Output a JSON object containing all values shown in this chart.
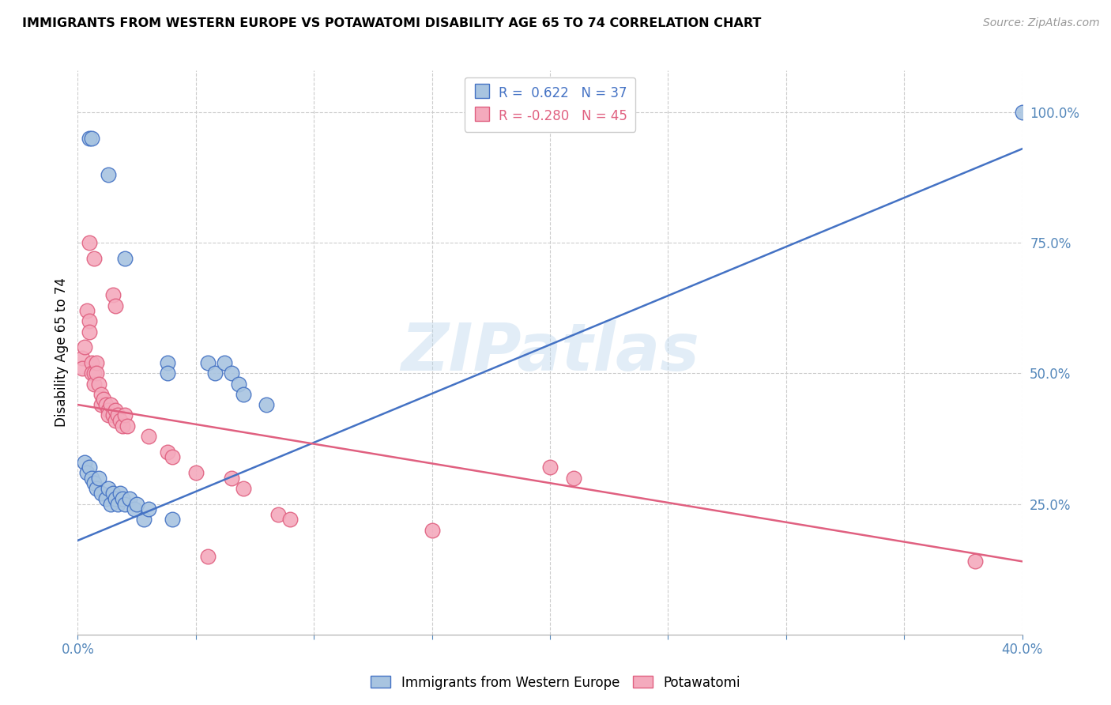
{
  "title": "IMMIGRANTS FROM WESTERN EUROPE VS POTAWATOMI DISABILITY AGE 65 TO 74 CORRELATION CHART",
  "source": "Source: ZipAtlas.com",
  "ylabel": "Disability Age 65 to 74",
  "right_yticks": [
    "100.0%",
    "75.0%",
    "50.0%",
    "25.0%"
  ],
  "right_ytick_vals": [
    1.0,
    0.75,
    0.5,
    0.25
  ],
  "blue_color": "#A8C4E0",
  "pink_color": "#F4AABD",
  "blue_line_color": "#4472C4",
  "pink_line_color": "#E06080",
  "blue_scatter": [
    [
      0.005,
      0.95
    ],
    [
      0.006,
      0.95
    ],
    [
      0.013,
      0.88
    ],
    [
      0.02,
      0.72
    ],
    [
      0.038,
      0.52
    ],
    [
      0.038,
      0.5
    ],
    [
      0.055,
      0.52
    ],
    [
      0.058,
      0.5
    ],
    [
      0.062,
      0.52
    ],
    [
      0.065,
      0.5
    ],
    [
      0.068,
      0.48
    ],
    [
      0.07,
      0.46
    ],
    [
      0.003,
      0.33
    ],
    [
      0.004,
      0.31
    ],
    [
      0.005,
      0.32
    ],
    [
      0.006,
      0.3
    ],
    [
      0.007,
      0.29
    ],
    [
      0.008,
      0.28
    ],
    [
      0.009,
      0.3
    ],
    [
      0.01,
      0.27
    ],
    [
      0.012,
      0.26
    ],
    [
      0.013,
      0.28
    ],
    [
      0.014,
      0.25
    ],
    [
      0.015,
      0.27
    ],
    [
      0.016,
      0.26
    ],
    [
      0.017,
      0.25
    ],
    [
      0.018,
      0.27
    ],
    [
      0.019,
      0.26
    ],
    [
      0.02,
      0.25
    ],
    [
      0.022,
      0.26
    ],
    [
      0.024,
      0.24
    ],
    [
      0.025,
      0.25
    ],
    [
      0.028,
      0.22
    ],
    [
      0.03,
      0.24
    ],
    [
      0.04,
      0.22
    ],
    [
      0.08,
      0.44
    ],
    [
      0.4,
      1.0
    ]
  ],
  "pink_scatter": [
    [
      0.002,
      0.53
    ],
    [
      0.002,
      0.51
    ],
    [
      0.003,
      0.55
    ],
    [
      0.004,
      0.62
    ],
    [
      0.005,
      0.6
    ],
    [
      0.005,
      0.58
    ],
    [
      0.006,
      0.52
    ],
    [
      0.006,
      0.5
    ],
    [
      0.007,
      0.5
    ],
    [
      0.007,
      0.48
    ],
    [
      0.008,
      0.52
    ],
    [
      0.008,
      0.5
    ],
    [
      0.009,
      0.48
    ],
    [
      0.01,
      0.46
    ],
    [
      0.01,
      0.44
    ],
    [
      0.011,
      0.45
    ],
    [
      0.012,
      0.44
    ],
    [
      0.013,
      0.43
    ],
    [
      0.013,
      0.42
    ],
    [
      0.014,
      0.44
    ],
    [
      0.015,
      0.42
    ],
    [
      0.016,
      0.43
    ],
    [
      0.016,
      0.41
    ],
    [
      0.017,
      0.42
    ],
    [
      0.018,
      0.41
    ],
    [
      0.019,
      0.4
    ],
    [
      0.02,
      0.42
    ],
    [
      0.021,
      0.4
    ],
    [
      0.005,
      0.75
    ],
    [
      0.007,
      0.72
    ],
    [
      0.015,
      0.65
    ],
    [
      0.016,
      0.63
    ],
    [
      0.03,
      0.38
    ],
    [
      0.038,
      0.35
    ],
    [
      0.04,
      0.34
    ],
    [
      0.05,
      0.31
    ],
    [
      0.055,
      0.15
    ],
    [
      0.065,
      0.3
    ],
    [
      0.07,
      0.28
    ],
    [
      0.085,
      0.23
    ],
    [
      0.09,
      0.22
    ],
    [
      0.15,
      0.2
    ],
    [
      0.2,
      0.32
    ],
    [
      0.21,
      0.3
    ],
    [
      0.38,
      0.14
    ]
  ],
  "blue_line_x": [
    0.0,
    0.4
  ],
  "blue_line_y": [
    0.18,
    0.93
  ],
  "pink_line_x": [
    0.0,
    0.4
  ],
  "pink_line_y": [
    0.44,
    0.14
  ],
  "xlim": [
    0.0,
    0.4
  ],
  "ylim": [
    0.0,
    1.08
  ],
  "x_ticks": [
    0.0,
    0.05,
    0.1,
    0.15,
    0.2,
    0.25,
    0.3,
    0.35,
    0.4
  ],
  "x_tick_labels_show": [
    "0.0%",
    "",
    "",
    "",
    "",
    "",
    "",
    "",
    "40.0%"
  ],
  "watermark": "ZIPatlas"
}
